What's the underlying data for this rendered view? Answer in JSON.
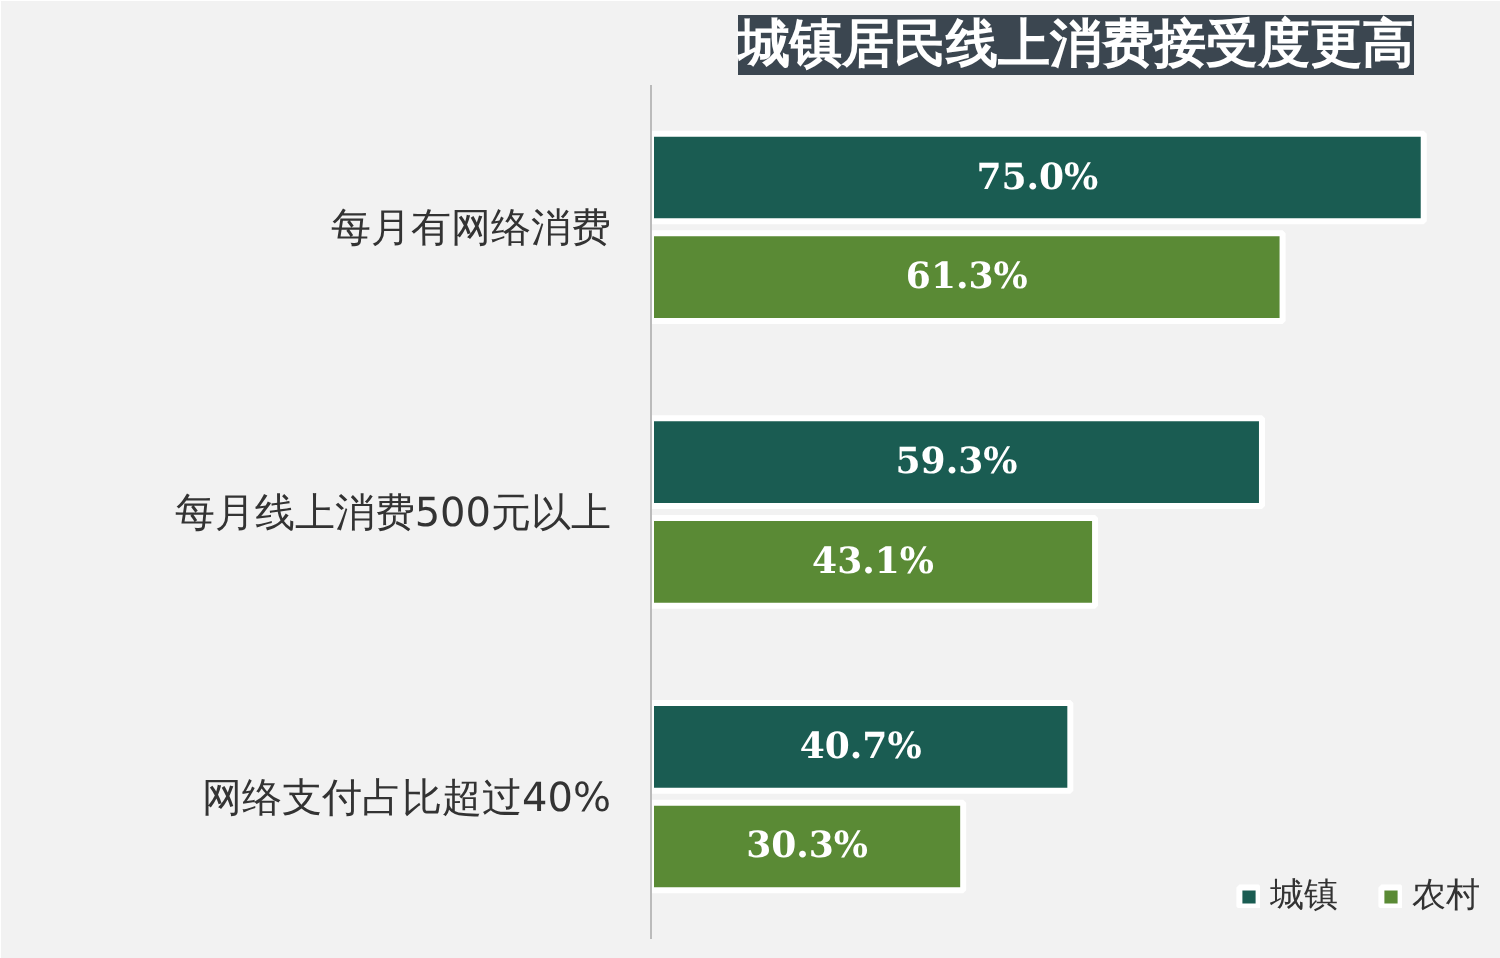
{
  "chart_data": {
    "type": "bar",
    "orientation": "horizontal",
    "title": "城镇居民线上消费接受度更高",
    "categories": [
      "每月有网络消费",
      "每月线上消费500元以上",
      "网络支付占比超过40%"
    ],
    "series": [
      {
        "name": "城镇",
        "color": "#1a5c52",
        "values": [
          75.0,
          59.3,
          40.7
        ],
        "value_labels": [
          "75.0%",
          "59.3%",
          "40.7%"
        ]
      },
      {
        "name": "农村",
        "color": "#5a8a35",
        "values": [
          61.3,
          43.1,
          30.3
        ],
        "value_labels": [
          "61.3%",
          "43.1%",
          "30.3%"
        ]
      }
    ],
    "legend": "bottom right",
    "grid": false
  }
}
